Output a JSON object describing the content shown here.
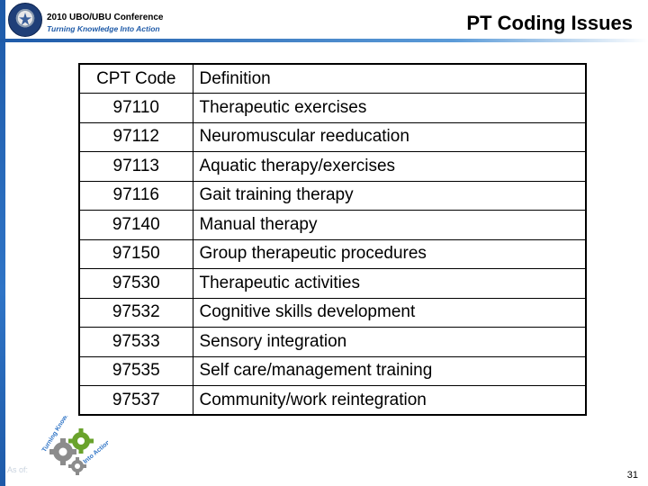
{
  "header": {
    "conference_title": "2010 UBO/UBU Conference",
    "conference_subtitle": "Turning Knowledge Into Action",
    "page_title": "PT Coding Issues"
  },
  "table": {
    "headers": [
      "CPT Code",
      "Definition"
    ],
    "rows": [
      {
        "code": "97110",
        "definition": "Therapeutic exercises"
      },
      {
        "code": "97112",
        "definition": "Neuromuscular reeducation"
      },
      {
        "code": "97113",
        "definition": "Aquatic therapy/exercises"
      },
      {
        "code": "97116",
        "definition": "Gait training therapy"
      },
      {
        "code": "97140",
        "definition": "Manual therapy"
      },
      {
        "code": "97150",
        "definition": "Group therapeutic procedures"
      },
      {
        "code": "97530",
        "definition": "Therapeutic activities"
      },
      {
        "code": "97532",
        "definition": "Cognitive skills development"
      },
      {
        "code": "97533",
        "definition": "Sensory integration"
      },
      {
        "code": "97535",
        "definition": "Self care/management training"
      },
      {
        "code": "97537",
        "definition": "Community/work reintegration"
      }
    ]
  },
  "footer": {
    "as_of": "As of:",
    "page_number": "31",
    "logo_text_top": "Turning Knowledge",
    "logo_text_bottom": "Into Action"
  },
  "colors": {
    "accent_blue": "#1e5aa8",
    "gear_gray": "#8c8c8c",
    "gear_green": "#6aa32c"
  }
}
